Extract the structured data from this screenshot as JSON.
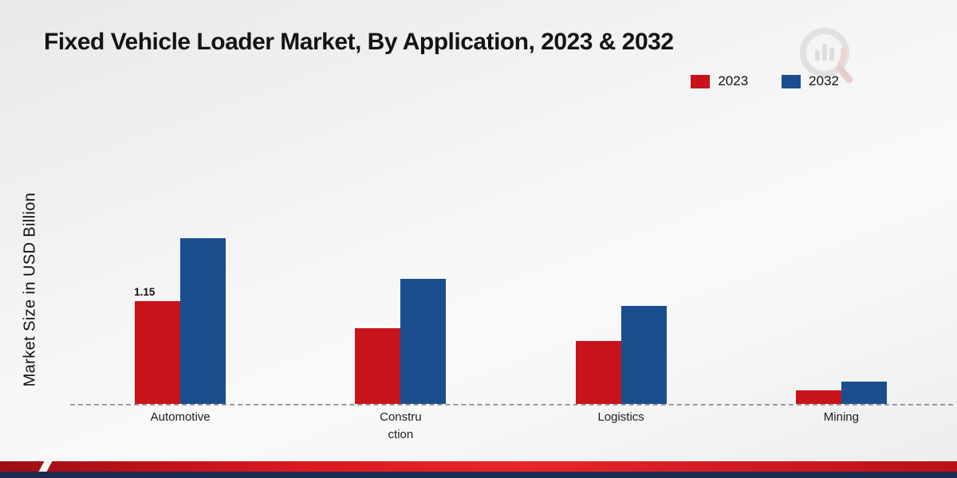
{
  "title": "Fixed Vehicle Loader Market, By Application, 2023 & 2032",
  "y_axis_label": "Market Size in USD Billion",
  "legend": [
    {
      "label": "2023",
      "color": "#c8131a"
    },
    {
      "label": "2032",
      "color": "#1b4e8f"
    }
  ],
  "chart_data": {
    "type": "bar",
    "title": "Fixed Vehicle Loader Market, By Application, 2023 & 2032",
    "xlabel": "",
    "ylabel": "Market Size in USD Billion",
    "categories": [
      "Automotive",
      "Construction",
      "Logistics",
      "Mining"
    ],
    "tick_labels": [
      "Automotive",
      "Constru\nction",
      "Logistics",
      "Mining"
    ],
    "series": [
      {
        "name": "2023",
        "color": "#c8131a",
        "values": [
          1.15,
          0.85,
          0.7,
          0.15
        ]
      },
      {
        "name": "2032",
        "color": "#1b4e8f",
        "values": [
          1.85,
          1.4,
          1.1,
          0.25
        ]
      }
    ],
    "annotations": [
      {
        "series": "2023",
        "category": "Automotive",
        "text": "1.15"
      }
    ],
    "ylim": [
      0,
      2.2
    ],
    "grid": false,
    "legend_position": "top-right",
    "baseline_style": "dashed"
  }
}
